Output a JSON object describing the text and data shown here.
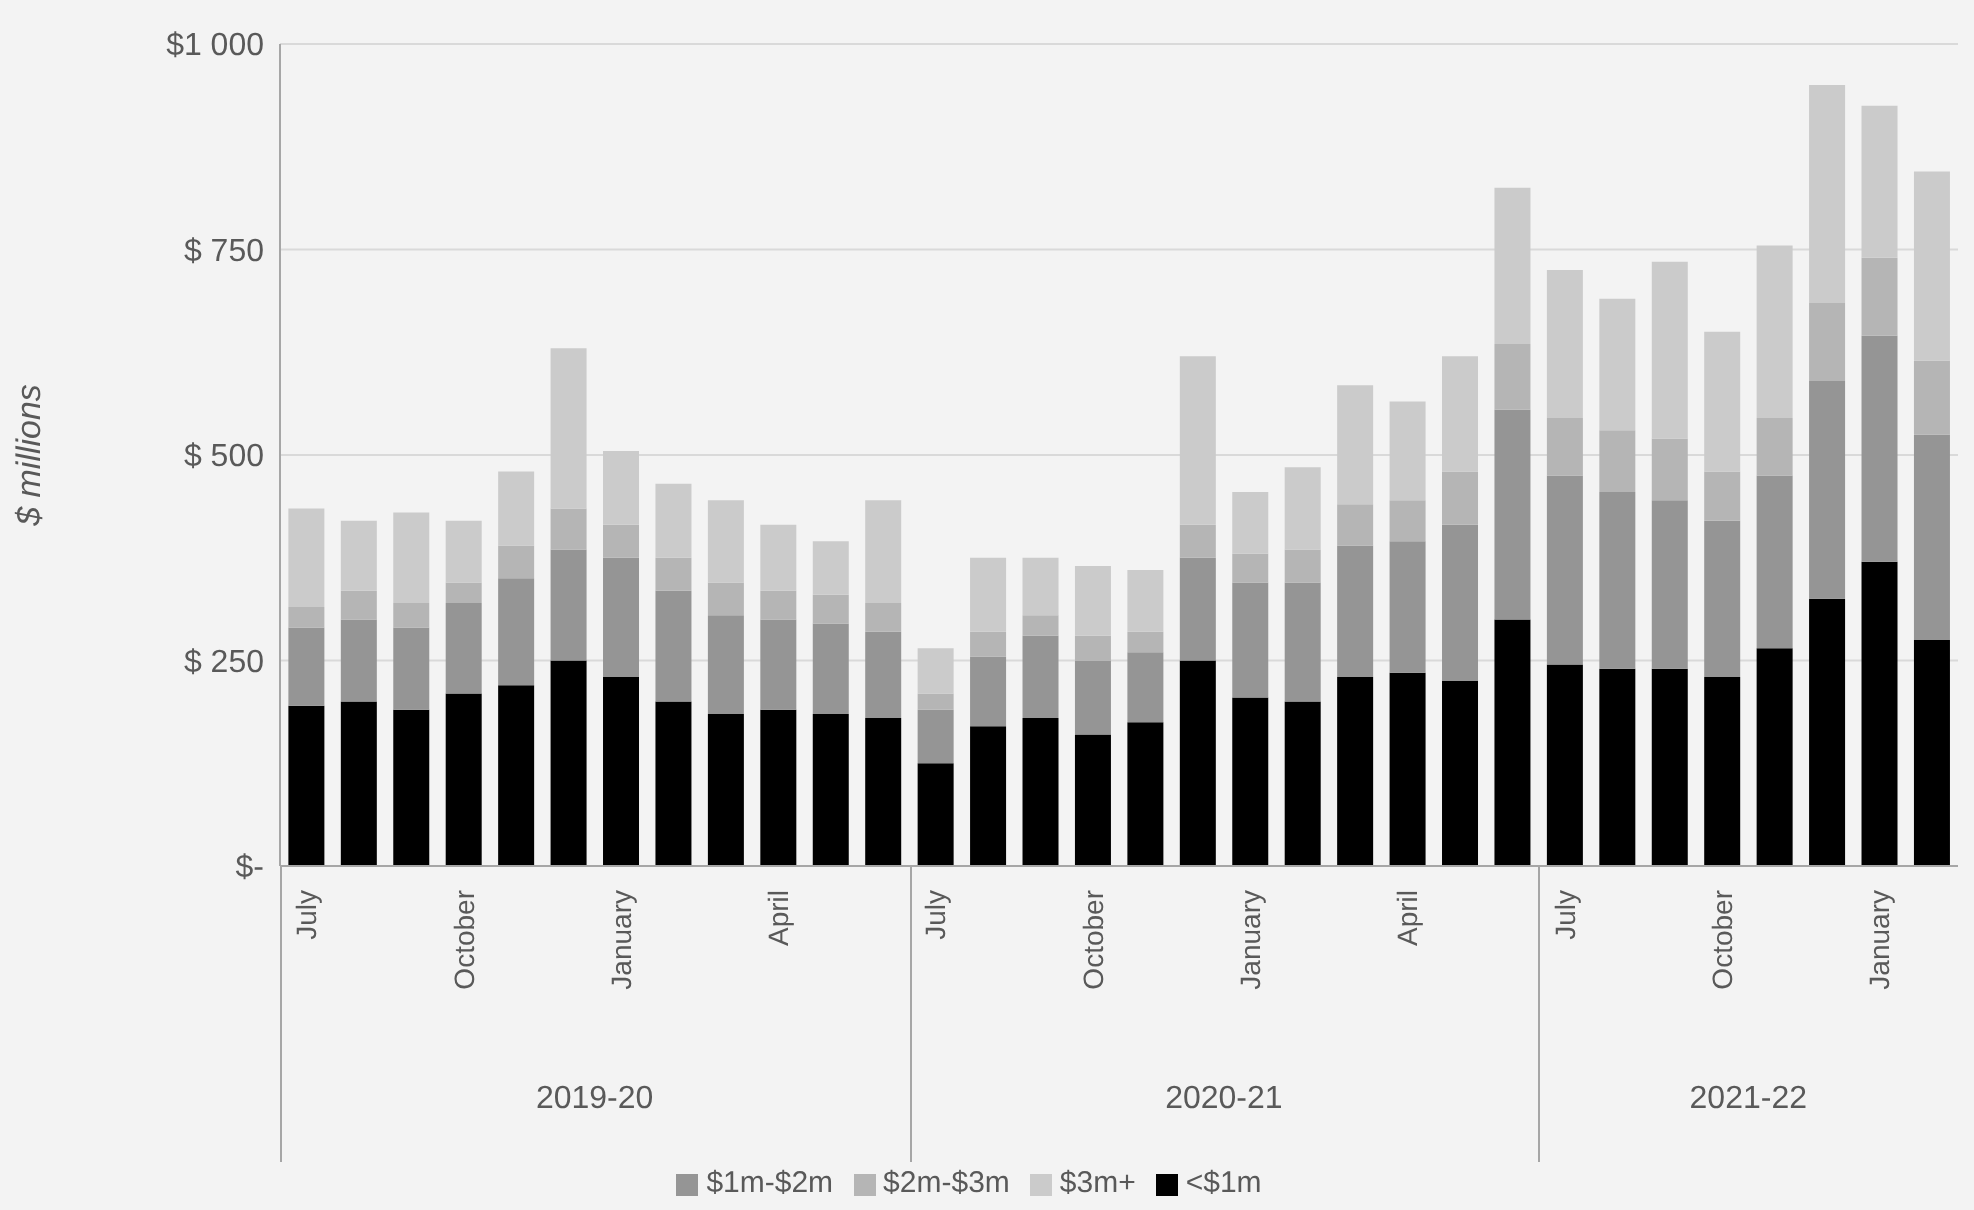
{
  "chart_data": {
    "type": "bar",
    "stacked": true,
    "ylabel": "$ millions",
    "categories": [
      "July",
      null,
      null,
      "October",
      null,
      null,
      "January",
      null,
      null,
      "April",
      null,
      null,
      "July",
      null,
      null,
      "October",
      null,
      null,
      "January",
      null,
      null,
      "April",
      null,
      null,
      "July",
      null,
      null,
      "October",
      null,
      null,
      "January",
      null
    ],
    "series": [
      {
        "name": "<$1m",
        "color": "#000000",
        "values": [
          195,
          200,
          190,
          210,
          220,
          250,
          230,
          200,
          185,
          190,
          185,
          180,
          125,
          170,
          180,
          160,
          175,
          250,
          205,
          200,
          230,
          235,
          225,
          300,
          245,
          240,
          240,
          230,
          265,
          325,
          370,
          275
        ]
      },
      {
        "name": "$1m-$2m",
        "color": "#959595",
        "values": [
          95,
          100,
          100,
          110,
          130,
          135,
          145,
          135,
          120,
          110,
          110,
          105,
          65,
          85,
          100,
          90,
          85,
          125,
          140,
          145,
          160,
          160,
          190,
          255,
          230,
          215,
          205,
          190,
          210,
          265,
          275,
          250
        ]
      },
      {
        "name": "$2m-$3m",
        "color": "#b5b5b5",
        "values": [
          25,
          35,
          30,
          25,
          40,
          50,
          40,
          40,
          40,
          35,
          35,
          35,
          20,
          30,
          25,
          30,
          25,
          40,
          35,
          40,
          50,
          50,
          65,
          80,
          70,
          75,
          75,
          60,
          70,
          95,
          95,
          90
        ]
      },
      {
        "name": "$3m+",
        "color": "#cbcbcb",
        "values": [
          120,
          85,
          110,
          75,
          90,
          195,
          90,
          90,
          100,
          80,
          65,
          125,
          55,
          90,
          70,
          85,
          75,
          205,
          75,
          100,
          145,
          120,
          140,
          190,
          180,
          160,
          215,
          170,
          210,
          265,
          185,
          230
        ]
      }
    ],
    "ylim": [
      0,
      1000
    ],
    "yticks": [
      {
        "value": 0,
        "label": "$-"
      },
      {
        "value": 250,
        "label": "$ 250"
      },
      {
        "value": 500,
        "label": "$ 500"
      },
      {
        "value": 750,
        "label": "$ 750"
      },
      {
        "value": 1000,
        "label": "$1 000"
      }
    ],
    "grid": "y",
    "legend": "bottom",
    "annotations": [
      "2019-20",
      "2020-21",
      "2021-22"
    ]
  }
}
